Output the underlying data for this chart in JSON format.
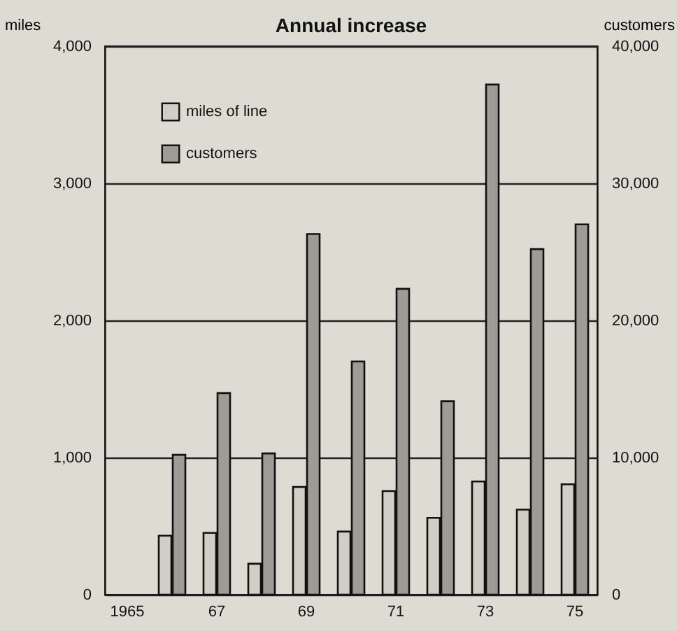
{
  "chart_data": {
    "type": "bar",
    "title": "Annual increase",
    "ylabel": "miles",
    "y2label": "customers",
    "categories": [
      "1965",
      null,
      "67",
      null,
      "69",
      null,
      "71",
      null,
      "73",
      null,
      "75"
    ],
    "series": [
      {
        "name": "miles of line",
        "color": "#cfcfc6",
        "values": [
          null,
          430,
          450,
          225,
          785,
          460,
          755,
          560,
          825,
          620,
          805
        ]
      },
      {
        "name": "customers",
        "color": "#9c9c94",
        "axis": "y2",
        "values": [
          null,
          10200,
          14700,
          10300,
          26300,
          17000,
          22300,
          14100,
          37200,
          25200,
          27000
        ]
      }
    ],
    "ylim": [
      0,
      4000
    ],
    "yticks": [
      0,
      {
        "value": 1000,
        "label": "1,000"
      },
      {
        "value": 2000,
        "label": "2,000"
      },
      {
        "value": 3000,
        "label": "3,000"
      },
      {
        "value": 4000,
        "label": "4,000"
      }
    ],
    "y2lim": [
      0,
      40000
    ],
    "y2ticks": [
      0,
      {
        "value": 10000,
        "label": "10,000"
      },
      {
        "value": 20000,
        "label": "20,000"
      },
      {
        "value": 30000,
        "label": "30,000"
      },
      {
        "value": 40000,
        "label": "40,000"
      }
    ],
    "grid": "y",
    "legend": "top left"
  }
}
